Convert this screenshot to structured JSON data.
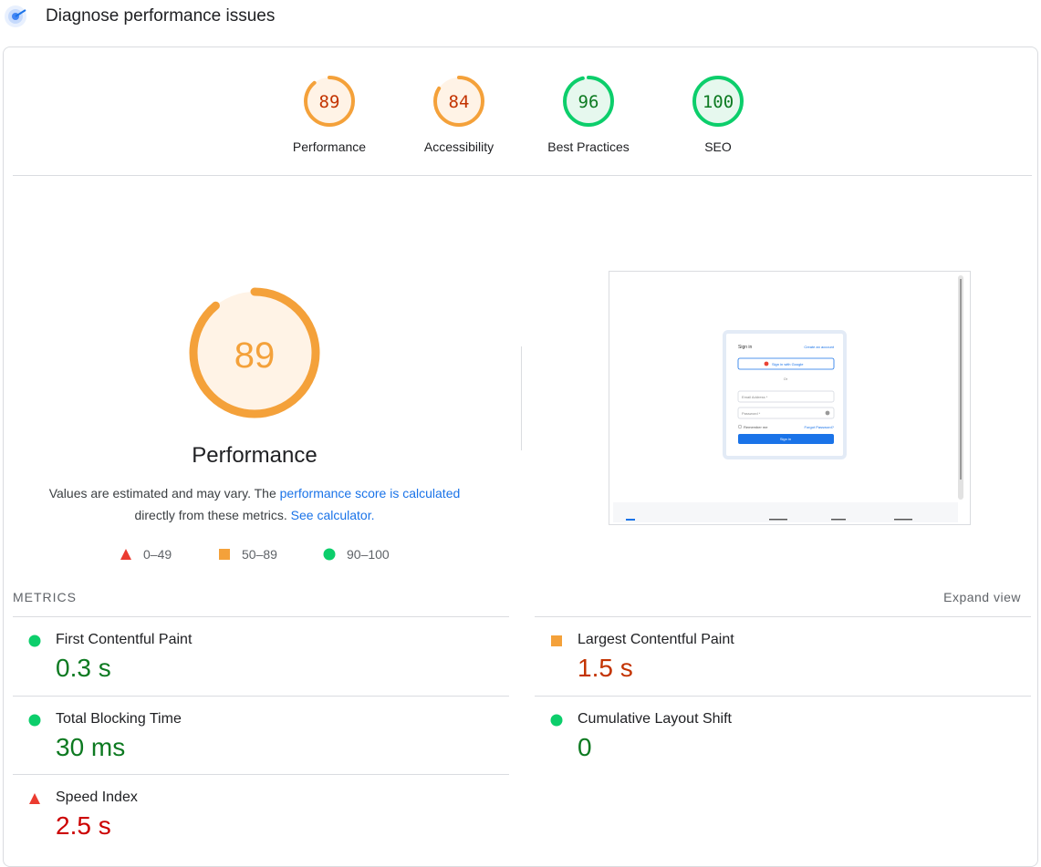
{
  "header": {
    "title": "Diagnose performance issues",
    "logo_icon": "lighthouse-logo-icon"
  },
  "scores": [
    {
      "value": 89,
      "label": "Performance",
      "fraction": 0.89,
      "color": "#f4a13a",
      "text_color": "#c33300",
      "bg": "#fff3e6"
    },
    {
      "value": 84,
      "label": "Accessibility",
      "fraction": 0.84,
      "color": "#f4a13a",
      "text_color": "#c33300",
      "bg": "#fff3e6"
    },
    {
      "value": 96,
      "label": "Best Practices",
      "fraction": 0.96,
      "color": "#0cce6b",
      "text_color": "#0d7a21",
      "bg": "#e6f8ee"
    },
    {
      "value": 100,
      "label": "SEO",
      "fraction": 1.0,
      "color": "#0cce6b",
      "text_color": "#0d7a21",
      "bg": "#e6f8ee"
    }
  ],
  "performance": {
    "score": "89",
    "fraction": 0.89,
    "title": "Performance",
    "desc_1": "Values are estimated and may vary. The ",
    "desc_link_1": "performance score is calculated",
    "desc_2": "directly from these metrics. ",
    "desc_link_2": "See calculator."
  },
  "legend": [
    {
      "icon": "red-triangle-icon",
      "range": "0–49",
      "color": "#eb3b30"
    },
    {
      "icon": "orange-square-icon",
      "range": "50–89",
      "color": "#f4a13a"
    },
    {
      "icon": "green-circle-icon",
      "range": "90–100",
      "color": "#0cce6b"
    }
  ],
  "screenshot": {
    "sign_in": "Sign in",
    "create_account": "Create an account",
    "google_button": "Sign in with Google",
    "or": "Or",
    "email_placeholder": "Email Address *",
    "password_placeholder": "Password *",
    "remember_me": "Remember me",
    "forgot_password": "Forgot Password?",
    "sign_in_button": "Sign in"
  },
  "metrics": {
    "heading": "METRICS",
    "expand": "Expand view",
    "items": [
      {
        "name": "First Contentful Paint",
        "value": "0.3 s",
        "status": "good"
      },
      {
        "name": "Largest Contentful Paint",
        "value": "1.5 s",
        "status": "average"
      },
      {
        "name": "Total Blocking Time",
        "value": "30 ms",
        "status": "good"
      },
      {
        "name": "Cumulative Layout Shift",
        "value": "0",
        "status": "good"
      },
      {
        "name": "Speed Index",
        "value": "2.5 s",
        "status": "poor"
      }
    ]
  }
}
